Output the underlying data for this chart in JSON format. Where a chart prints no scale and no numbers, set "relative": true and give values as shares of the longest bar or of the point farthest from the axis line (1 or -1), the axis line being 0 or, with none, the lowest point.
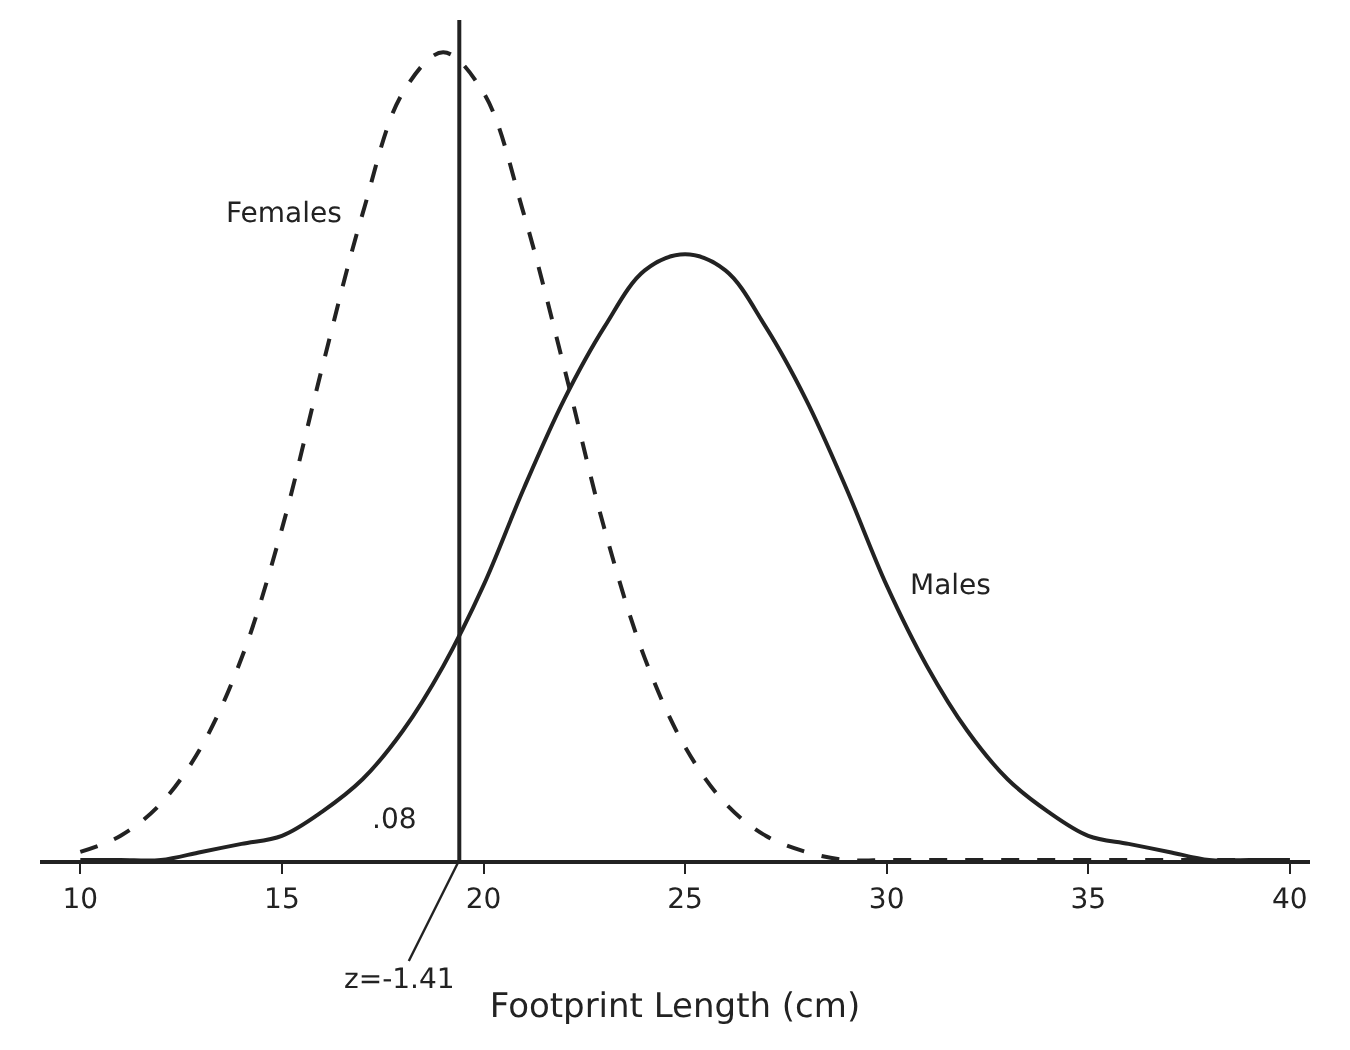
{
  "chart_data": {
    "type": "line",
    "relative": true,
    "xlabel": "Footprint Length (cm)",
    "x": [
      10,
      11,
      12,
      13,
      14,
      15,
      16,
      17,
      18,
      19,
      20,
      21,
      22,
      23,
      24,
      25,
      26,
      27,
      28,
      29,
      30,
      31,
      32,
      33,
      34,
      35,
      36,
      37,
      38,
      39,
      40
    ],
    "series": [
      {
        "name": "Females",
        "color": "#222222",
        "line_style": "dashed",
        "values": [
          0.01,
          0.03,
          0.07,
          0.14,
          0.25,
          0.41,
          0.61,
          0.8,
          0.95,
          1,
          0.95,
          0.8,
          0.61,
          0.41,
          0.25,
          0.14,
          0.07,
          0.03,
          0.01,
          0,
          0,
          0,
          0,
          0,
          0,
          0,
          0,
          0,
          0,
          0,
          0
        ]
      },
      {
        "name": "Males",
        "color": "#222222",
        "line_style": "solid",
        "values": [
          0,
          0,
          0,
          0.01,
          0.02,
          0.03,
          0.06,
          0.1,
          0.16,
          0.24,
          0.34,
          0.46,
          0.57,
          0.66,
          0.73,
          0.75,
          0.73,
          0.66,
          0.57,
          0.46,
          0.34,
          0.24,
          0.16,
          0.1,
          0.06,
          0.03,
          0.02,
          0.01,
          0,
          0,
          0
        ]
      }
    ],
    "ref_lines": [
      {
        "axis": "x",
        "value": 19.4,
        "color": "#222222"
      }
    ],
    "annotations": [
      {
        "text": "z=-1.41",
        "x": 19.4,
        "y": 0
      },
      ".08"
    ],
    "xlim": [
      9,
      40.5
    ],
    "xticks": [
      10,
      15,
      20,
      25,
      30,
      35,
      40
    ],
    "legend": false,
    "marker": "none"
  }
}
